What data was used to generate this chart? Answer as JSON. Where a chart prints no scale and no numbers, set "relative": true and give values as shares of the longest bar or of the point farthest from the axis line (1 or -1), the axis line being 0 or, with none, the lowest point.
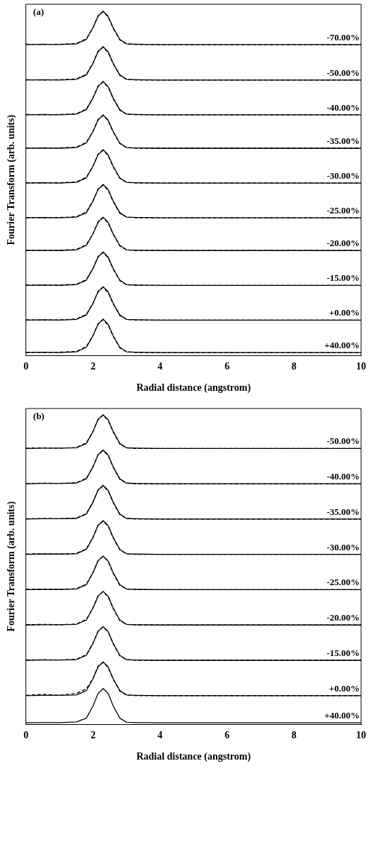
{
  "chart_data": [
    {
      "type": "line",
      "relative": true,
      "xlabel": "Radial distance (angstrom)",
      "ylabel": "Fourier Transform (arb. units)",
      "annotations": [
        "(a)"
      ],
      "xlim": [
        0,
        10
      ],
      "xticks": [
        0,
        2,
        4,
        6,
        8,
        10
      ],
      "marker": "none",
      "x": [
        0,
        0.5,
        1,
        1.5,
        1.8,
        2.0,
        2.15,
        2.3,
        2.45,
        2.6,
        2.8,
        3.0,
        3.3,
        4,
        5,
        6,
        7,
        8,
        9,
        10
      ],
      "series": [
        {
          "name": "-70.00%",
          "color": "#000000",
          "values": [
            0.903,
            0.904,
            0.903,
            0.905,
            0.918,
            0.952,
            0.985,
            1,
            0.985,
            0.952,
            0.918,
            0.905,
            0.904,
            0.903,
            0.903,
            0.903,
            0.903,
            0.903,
            0.903,
            0.903
          ]
        },
        {
          "color": "#000000",
          "line_style": "dashed",
          "values": [
            0.904,
            0.903,
            0.904,
            0.906,
            0.92,
            0.953,
            0.987,
            0.998,
            0.983,
            0.95,
            0.916,
            0.905,
            0.903,
            0.903,
            0.903,
            0.903,
            0.903,
            0.903,
            0.903,
            0.903
          ]
        },
        {
          "name": "-50.00%",
          "color": "#000000",
          "values": [
            0.8,
            0.801,
            0.8,
            0.802,
            0.815,
            0.849,
            0.882,
            0.897,
            0.882,
            0.849,
            0.815,
            0.802,
            0.801,
            0.8,
            0.8,
            0.8,
            0.8,
            0.8,
            0.8,
            0.8
          ]
        },
        {
          "color": "#000000",
          "line_style": "dashed",
          "values": [
            0.801,
            0.8,
            0.801,
            0.803,
            0.817,
            0.85,
            0.884,
            0.895,
            0.88,
            0.847,
            0.813,
            0.802,
            0.8,
            0.8,
            0.8,
            0.8,
            0.8,
            0.8,
            0.8,
            0.8
          ]
        },
        {
          "name": "-40.00%",
          "color": "#000000",
          "values": [
            0.699,
            0.7,
            0.699,
            0.701,
            0.714,
            0.748,
            0.781,
            0.796,
            0.781,
            0.748,
            0.714,
            0.701,
            0.7,
            0.699,
            0.699,
            0.699,
            0.699,
            0.699,
            0.699,
            0.699
          ]
        },
        {
          "color": "#000000",
          "line_style": "dashed",
          "values": [
            0.7,
            0.699,
            0.7,
            0.702,
            0.716,
            0.749,
            0.783,
            0.794,
            0.779,
            0.746,
            0.712,
            0.701,
            0.699,
            0.699,
            0.699,
            0.699,
            0.699,
            0.699,
            0.699,
            0.699
          ]
        },
        {
          "name": "-35.00%",
          "color": "#000000",
          "values": [
            0.602,
            0.603,
            0.602,
            0.604,
            0.617,
            0.651,
            0.684,
            0.699,
            0.684,
            0.651,
            0.617,
            0.604,
            0.603,
            0.602,
            0.602,
            0.602,
            0.602,
            0.602,
            0.602,
            0.602
          ]
        },
        {
          "color": "#000000",
          "line_style": "dashed",
          "values": [
            0.603,
            0.602,
            0.603,
            0.605,
            0.619,
            0.652,
            0.686,
            0.697,
            0.682,
            0.649,
            0.615,
            0.604,
            0.602,
            0.602,
            0.602,
            0.602,
            0.602,
            0.602,
            0.602,
            0.602
          ]
        },
        {
          "name": "-30.00%",
          "color": "#000000",
          "values": [
            0.501,
            0.502,
            0.501,
            0.503,
            0.516,
            0.55,
            0.583,
            0.598,
            0.583,
            0.55,
            0.516,
            0.503,
            0.502,
            0.501,
            0.501,
            0.501,
            0.501,
            0.501,
            0.501,
            0.501
          ]
        },
        {
          "color": "#000000",
          "line_style": "dashed",
          "values": [
            0.502,
            0.501,
            0.502,
            0.504,
            0.518,
            0.551,
            0.585,
            0.596,
            0.581,
            0.548,
            0.514,
            0.503,
            0.501,
            0.501,
            0.501,
            0.501,
            0.501,
            0.501,
            0.501,
            0.501
          ]
        },
        {
          "name": "-25.00%",
          "color": "#000000",
          "values": [
            0.4,
            0.401,
            0.4,
            0.402,
            0.415,
            0.449,
            0.482,
            0.497,
            0.482,
            0.449,
            0.415,
            0.402,
            0.401,
            0.4,
            0.4,
            0.4,
            0.4,
            0.4,
            0.4,
            0.4
          ]
        },
        {
          "color": "#000000",
          "line_style": "dashed",
          "values": [
            0.401,
            0.4,
            0.401,
            0.403,
            0.417,
            0.45,
            0.484,
            0.495,
            0.48,
            0.447,
            0.413,
            0.402,
            0.4,
            0.4,
            0.4,
            0.4,
            0.4,
            0.4,
            0.4,
            0.4
          ]
        },
        {
          "name": "-20.00%",
          "color": "#000000",
          "values": [
            0.305,
            0.306,
            0.305,
            0.307,
            0.32,
            0.354,
            0.387,
            0.402,
            0.387,
            0.354,
            0.32,
            0.307,
            0.306,
            0.305,
            0.305,
            0.305,
            0.305,
            0.305,
            0.305,
            0.305
          ]
        },
        {
          "color": "#000000",
          "line_style": "dashed",
          "values": [
            0.306,
            0.305,
            0.306,
            0.308,
            0.322,
            0.355,
            0.389,
            0.4,
            0.385,
            0.352,
            0.318,
            0.307,
            0.305,
            0.305,
            0.305,
            0.305,
            0.305,
            0.305,
            0.305,
            0.305
          ]
        },
        {
          "name": "-15.00%",
          "color": "#000000",
          "values": [
            0.204,
            0.205,
            0.204,
            0.206,
            0.219,
            0.253,
            0.286,
            0.301,
            0.286,
            0.253,
            0.219,
            0.206,
            0.205,
            0.204,
            0.204,
            0.204,
            0.204,
            0.204,
            0.204,
            0.204
          ]
        },
        {
          "color": "#000000",
          "line_style": "dashed",
          "values": [
            0.205,
            0.204,
            0.205,
            0.207,
            0.221,
            0.254,
            0.288,
            0.299,
            0.284,
            0.251,
            0.217,
            0.206,
            0.204,
            0.204,
            0.204,
            0.204,
            0.204,
            0.204,
            0.204,
            0.204
          ]
        },
        {
          "name": "+0.00%",
          "color": "#000000",
          "values": [
            0.103,
            0.104,
            0.103,
            0.105,
            0.118,
            0.152,
            0.185,
            0.2,
            0.185,
            0.152,
            0.118,
            0.105,
            0.104,
            0.103,
            0.103,
            0.103,
            0.103,
            0.103,
            0.103,
            0.103
          ]
        },
        {
          "color": "#000000",
          "line_style": "dashed",
          "values": [
            0.104,
            0.103,
            0.104,
            0.106,
            0.12,
            0.153,
            0.187,
            0.198,
            0.183,
            0.15,
            0.116,
            0.105,
            0.103,
            0.103,
            0.103,
            0.103,
            0.103,
            0.103,
            0.103,
            0.103
          ]
        },
        {
          "name": "+40.00%",
          "color": "#000000",
          "values": [
            0.009,
            0.01,
            0.009,
            0.011,
            0.024,
            0.058,
            0.091,
            0.106,
            0.091,
            0.058,
            0.024,
            0.011,
            0.01,
            0.009,
            0.009,
            0.009,
            0.009,
            0.009,
            0.009,
            0.009
          ]
        },
        {
          "color": "#000000",
          "line_style": "dashed",
          "values": [
            0.01,
            0.009,
            0.01,
            0.012,
            0.026,
            0.059,
            0.093,
            0.104,
            0.089,
            0.056,
            0.022,
            0.011,
            0.009,
            0.009,
            0.009,
            0.009,
            0.009,
            0.009,
            0.009,
            0.009
          ]
        }
      ]
    },
    {
      "type": "line",
      "relative": true,
      "xlabel": "Radial distance (angstrom)",
      "ylabel": "Fourier Transform (arb. units)",
      "annotations": [
        "(b)"
      ],
      "xlim": [
        0,
        10
      ],
      "xticks": [
        0,
        2,
        4,
        6,
        8,
        10
      ],
      "marker": "none",
      "x": [
        0,
        0.5,
        1,
        1.5,
        1.8,
        2.0,
        2.15,
        2.3,
        2.45,
        2.6,
        2.8,
        3.0,
        3.3,
        4,
        5,
        6,
        7,
        8,
        9,
        10
      ],
      "series": [
        {
          "name": "-50.00%",
          "color": "#000000",
          "values": [
            0.891,
            0.892,
            0.892,
            0.893,
            0.907,
            0.946,
            0.984,
            1,
            0.984,
            0.946,
            0.907,
            0.893,
            0.892,
            0.891,
            0.891,
            0.891,
            0.891,
            0.891,
            0.891,
            0.891
          ]
        },
        {
          "color": "#000000",
          "line_style": "dashed",
          "values": [
            0.892,
            0.893,
            0.892,
            0.894,
            0.909,
            0.947,
            0.986,
            0.998,
            0.982,
            0.944,
            0.905,
            0.893,
            0.891,
            0.891,
            0.891,
            0.891,
            0.891,
            0.891,
            0.891,
            0.891
          ]
        },
        {
          "name": "-40.00%",
          "color": "#000000",
          "values": [
            0.777,
            0.778,
            0.778,
            0.779,
            0.793,
            0.832,
            0.87,
            0.886,
            0.87,
            0.832,
            0.793,
            0.779,
            0.778,
            0.777,
            0.777,
            0.777,
            0.777,
            0.777,
            0.777,
            0.777
          ]
        },
        {
          "color": "#000000",
          "line_style": "dashed",
          "values": [
            0.778,
            0.779,
            0.778,
            0.78,
            0.795,
            0.833,
            0.872,
            0.884,
            0.868,
            0.83,
            0.791,
            0.779,
            0.777,
            0.777,
            0.777,
            0.777,
            0.777,
            0.777,
            0.777,
            0.777
          ]
        },
        {
          "name": "-35.00%",
          "color": "#000000",
          "values": [
            0.663,
            0.664,
            0.664,
            0.665,
            0.679,
            0.718,
            0.756,
            0.772,
            0.756,
            0.718,
            0.679,
            0.665,
            0.664,
            0.663,
            0.663,
            0.663,
            0.663,
            0.663,
            0.663,
            0.663
          ]
        },
        {
          "color": "#000000",
          "line_style": "dashed",
          "values": [
            0.664,
            0.665,
            0.664,
            0.666,
            0.681,
            0.719,
            0.758,
            0.77,
            0.754,
            0.716,
            0.677,
            0.665,
            0.663,
            0.663,
            0.663,
            0.663,
            0.663,
            0.663,
            0.663,
            0.663
          ]
        },
        {
          "name": "-30.00%",
          "color": "#000000",
          "values": [
            0.549,
            0.55,
            0.55,
            0.551,
            0.565,
            0.604,
            0.642,
            0.658,
            0.642,
            0.604,
            0.565,
            0.551,
            0.55,
            0.549,
            0.549,
            0.549,
            0.549,
            0.549,
            0.549,
            0.549
          ]
        },
        {
          "color": "#000000",
          "line_style": "dashed",
          "values": [
            0.55,
            0.551,
            0.55,
            0.552,
            0.567,
            0.605,
            0.644,
            0.656,
            0.64,
            0.602,
            0.563,
            0.551,
            0.549,
            0.549,
            0.549,
            0.549,
            0.549,
            0.549,
            0.549,
            0.549
          ]
        },
        {
          "name": "-25.00%",
          "color": "#000000",
          "values": [
            0.435,
            0.436,
            0.436,
            0.437,
            0.451,
            0.49,
            0.528,
            0.544,
            0.528,
            0.49,
            0.451,
            0.437,
            0.436,
            0.435,
            0.435,
            0.435,
            0.435,
            0.435,
            0.435,
            0.435
          ]
        },
        {
          "color": "#000000",
          "line_style": "dashed",
          "values": [
            0.436,
            0.437,
            0.436,
            0.438,
            0.453,
            0.491,
            0.53,
            0.542,
            0.526,
            0.488,
            0.449,
            0.437,
            0.435,
            0.435,
            0.435,
            0.435,
            0.435,
            0.435,
            0.435,
            0.435
          ]
        },
        {
          "name": "-20.00%",
          "color": "#000000",
          "values": [
            0.321,
            0.322,
            0.322,
            0.323,
            0.337,
            0.376,
            0.414,
            0.43,
            0.414,
            0.376,
            0.337,
            0.323,
            0.322,
            0.321,
            0.321,
            0.321,
            0.321,
            0.321,
            0.321,
            0.321
          ]
        },
        {
          "color": "#000000",
          "line_style": "dashed",
          "values": [
            0.322,
            0.323,
            0.322,
            0.324,
            0.339,
            0.377,
            0.416,
            0.428,
            0.412,
            0.374,
            0.335,
            0.323,
            0.321,
            0.321,
            0.321,
            0.321,
            0.321,
            0.321,
            0.321,
            0.321
          ]
        },
        {
          "name": "-15.00%",
          "color": "#000000",
          "values": [
            0.207,
            0.208,
            0.208,
            0.209,
            0.223,
            0.262,
            0.3,
            0.316,
            0.3,
            0.262,
            0.223,
            0.209,
            0.208,
            0.207,
            0.207,
            0.207,
            0.207,
            0.207,
            0.207,
            0.207
          ]
        },
        {
          "color": "#000000",
          "line_style": "dashed",
          "values": [
            0.208,
            0.209,
            0.208,
            0.21,
            0.225,
            0.263,
            0.302,
            0.314,
            0.298,
            0.26,
            0.221,
            0.209,
            0.207,
            0.207,
            0.207,
            0.207,
            0.207,
            0.207,
            0.207,
            0.207
          ]
        },
        {
          "name": "+0.00%",
          "color": "#000000",
          "values": [
            0.093,
            0.094,
            0.094,
            0.095,
            0.109,
            0.148,
            0.186,
            0.202,
            0.186,
            0.148,
            0.109,
            0.095,
            0.094,
            0.093,
            0.093,
            0.093,
            0.093,
            0.093,
            0.093,
            0.093
          ]
        },
        {
          "color": "#000000",
          "line_style": "dashed",
          "values": [
            0.094,
            0.097,
            0.094,
            0.1,
            0.115,
            0.149,
            0.188,
            0.2,
            0.184,
            0.146,
            0.107,
            0.095,
            0.093,
            0.093,
            0.093,
            0.093,
            0.093,
            0.093,
            0.093,
            0.093
          ]
        },
        {
          "name": "+40.00%",
          "color": "#000000",
          "values": [
            0.005,
            0.006,
            0.006,
            0.008,
            0.02,
            0.06,
            0.1,
            0.116,
            0.1,
            0.06,
            0.02,
            0.007,
            0.006,
            0.005,
            0.005,
            0.005,
            0.005,
            0.005,
            0.005,
            0.005
          ]
        }
      ]
    }
  ]
}
